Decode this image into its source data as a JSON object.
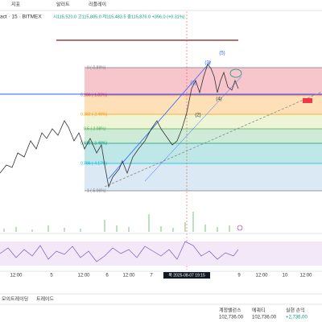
{
  "toolbar": {
    "indicators": "지표",
    "alert": "알러트",
    "replay": "리플레이"
  },
  "symbol": {
    "name": "act · 15 · BITMEX",
    "ohlc": "시115,520.0 고115,885.0 저115,483.5 종115,876.0 +356.0 (+0.31%)"
  },
  "fib": [
    "0 (-0.89%)",
    "0.236 (-1.88%)",
    "0.382 (-2.49%)",
    "0.5 (-2.98%)",
    "0.618 (-3.48%)",
    "0.786 (-4.17%)",
    "1 (-5.06%)"
  ],
  "waves": [
    "(1)",
    "(2)",
    "(3)",
    "(4)",
    "(5)"
  ],
  "xaxis": [
    "12:00",
    "5",
    "12:00",
    "6",
    "12:00",
    "7",
    "목 2025-08-07  19:15",
    "9",
    "12:00",
    "10",
    "12:00"
  ],
  "bottom": {
    "tabs": [
      "모의트레이딩",
      "트레이드"
    ],
    "stats": [
      {
        "label": "계정밸런스",
        "value": "102,736.00"
      },
      {
        "label": "에쿼티",
        "value": "102,736.00"
      },
      {
        "label": "실현 손익",
        "value": "+2,736.00"
      }
    ]
  }
}
